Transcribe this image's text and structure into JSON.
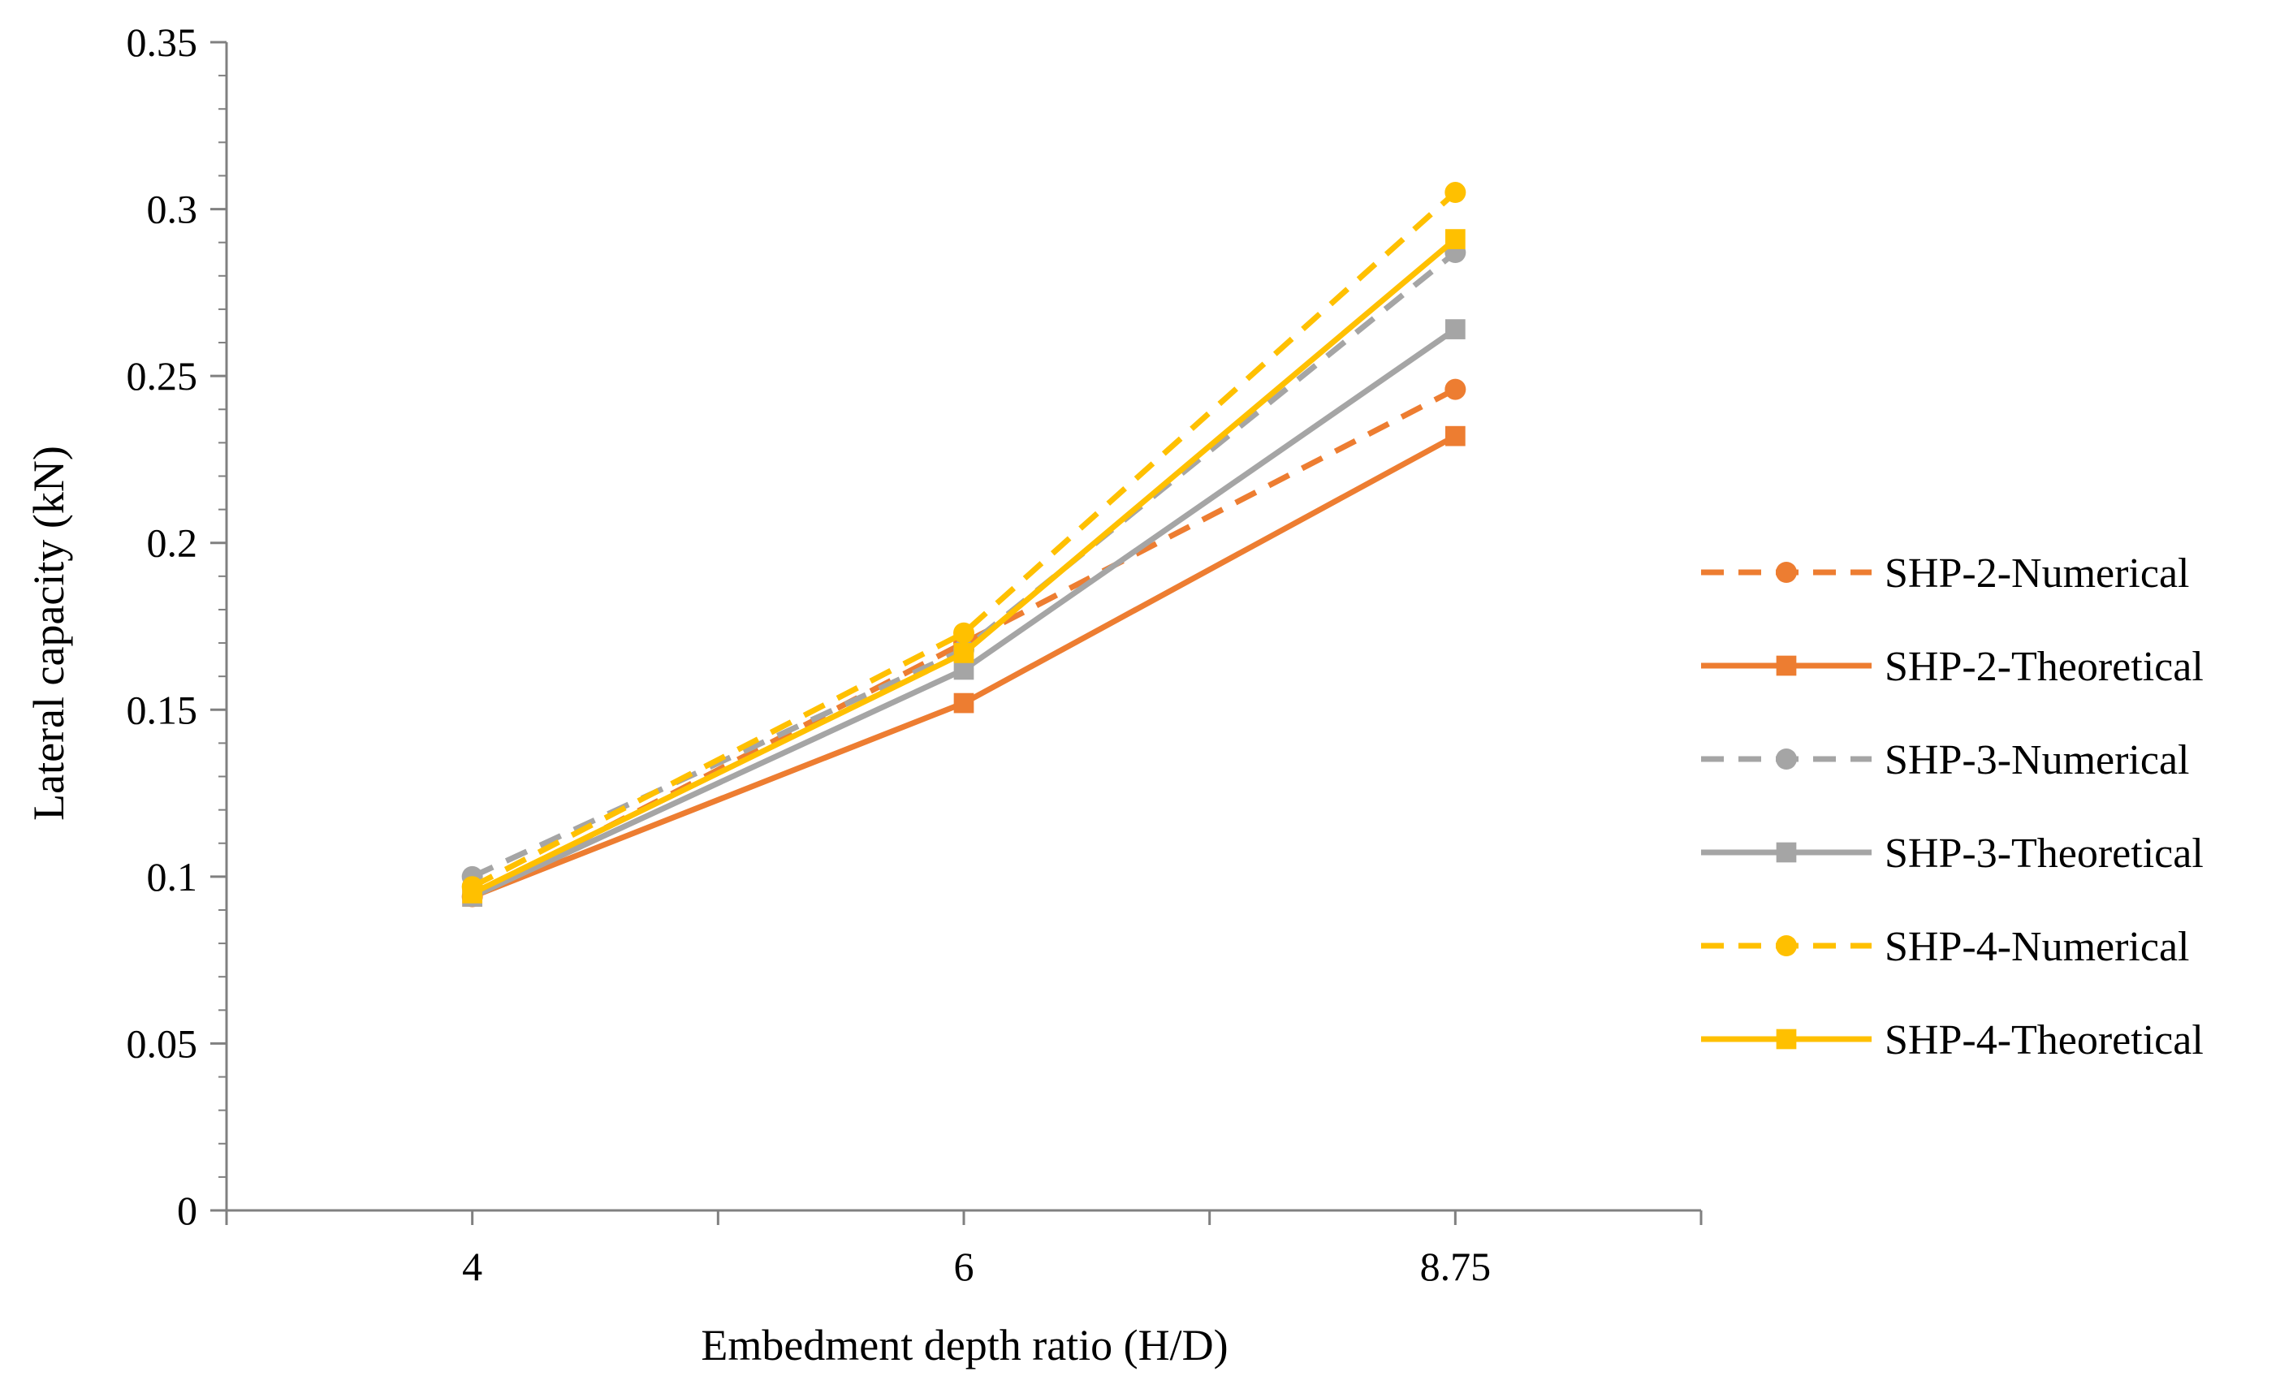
{
  "chart_data": {
    "type": "line",
    "title": "",
    "xlabel": "Embedment depth ratio (H/D)",
    "ylabel": "Lateral capacity (kN)",
    "categories": [
      "4",
      "6",
      "8.75"
    ],
    "ylim": [
      0,
      0.35
    ],
    "yticks": [
      "0",
      "0.05",
      "0.1",
      "0.15",
      "0.2",
      "0.25",
      "0.3",
      "0.35"
    ],
    "legend_position": "right",
    "grid": false,
    "series": [
      {
        "name": "SHP-2-Numerical",
        "values": [
          0.094,
          0.17,
          0.246
        ],
        "color": "#ED7D31",
        "dash": true,
        "marker": "circle"
      },
      {
        "name": "SHP-2-Theoretical",
        "values": [
          0.094,
          0.152,
          0.232
        ],
        "color": "#ED7D31",
        "dash": false,
        "marker": "square"
      },
      {
        "name": "SHP-3-Numerical",
        "values": [
          0.1,
          0.168,
          0.287
        ],
        "color": "#A5A5A5",
        "dash": true,
        "marker": "circle"
      },
      {
        "name": "SHP-3-Theoretical",
        "values": [
          0.094,
          0.162,
          0.264
        ],
        "color": "#A5A5A5",
        "dash": false,
        "marker": "square"
      },
      {
        "name": "SHP-4-Numerical",
        "values": [
          0.097,
          0.173,
          0.305
        ],
        "color": "#FFC000",
        "dash": true,
        "marker": "circle"
      },
      {
        "name": "SHP-4-Theoretical",
        "values": [
          0.095,
          0.167,
          0.291
        ],
        "color": "#FFC000",
        "dash": false,
        "marker": "square"
      }
    ]
  }
}
